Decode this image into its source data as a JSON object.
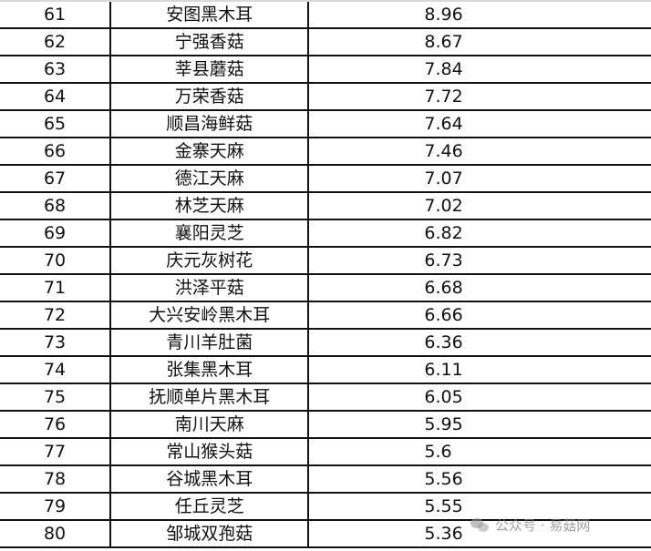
{
  "rows": [
    {
      "rank": "61",
      "name": "安图黑木耳",
      "value": "8.96"
    },
    {
      "rank": "62",
      "name": "宁强香菇",
      "value": "8.67"
    },
    {
      "rank": "63",
      "name": "莘县蘑菇",
      "value": "7.84"
    },
    {
      "rank": "64",
      "name": "万荣香菇",
      "value": "7.72"
    },
    {
      "rank": "65",
      "name": "顺昌海鲜菇",
      "value": "7.64"
    },
    {
      "rank": "66",
      "name": "金寨天麻",
      "value": "7.46"
    },
    {
      "rank": "67",
      "name": "德江天麻",
      "value": "7.07"
    },
    {
      "rank": "68",
      "name": "林芝天麻",
      "value": "7.02"
    },
    {
      "rank": "69",
      "name": "襄阳灵芝",
      "value": "6.82"
    },
    {
      "rank": "70",
      "name": "庆元灰树花",
      "value": "6.73"
    },
    {
      "rank": "71",
      "name": "洪泽平菇",
      "value": "6.68"
    },
    {
      "rank": "72",
      "name": "大兴安岭黑木耳",
      "value": "6.66"
    },
    {
      "rank": "73",
      "name": "青川羊肚菌",
      "value": "6.36"
    },
    {
      "rank": "74",
      "name": "张集黑木耳",
      "value": "6.11"
    },
    {
      "rank": "75",
      "name": "抚顺单片黑木耳",
      "value": "6.05"
    },
    {
      "rank": "76",
      "name": "南川天麻",
      "value": "5.95"
    },
    {
      "rank": "77",
      "name": "常山猴头菇",
      "value": "5.6"
    },
    {
      "rank": "78",
      "name": "谷城黑木耳",
      "value": "5.56"
    },
    {
      "rank": "79",
      "name": "任丘灵芝",
      "value": "5.55"
    },
    {
      "rank": "80",
      "name": "邹城双孢菇",
      "value": "5.36"
    }
  ],
  "watermark": {
    "text": "公众号 · 易菇网",
    "icon": "wechat-icon"
  }
}
